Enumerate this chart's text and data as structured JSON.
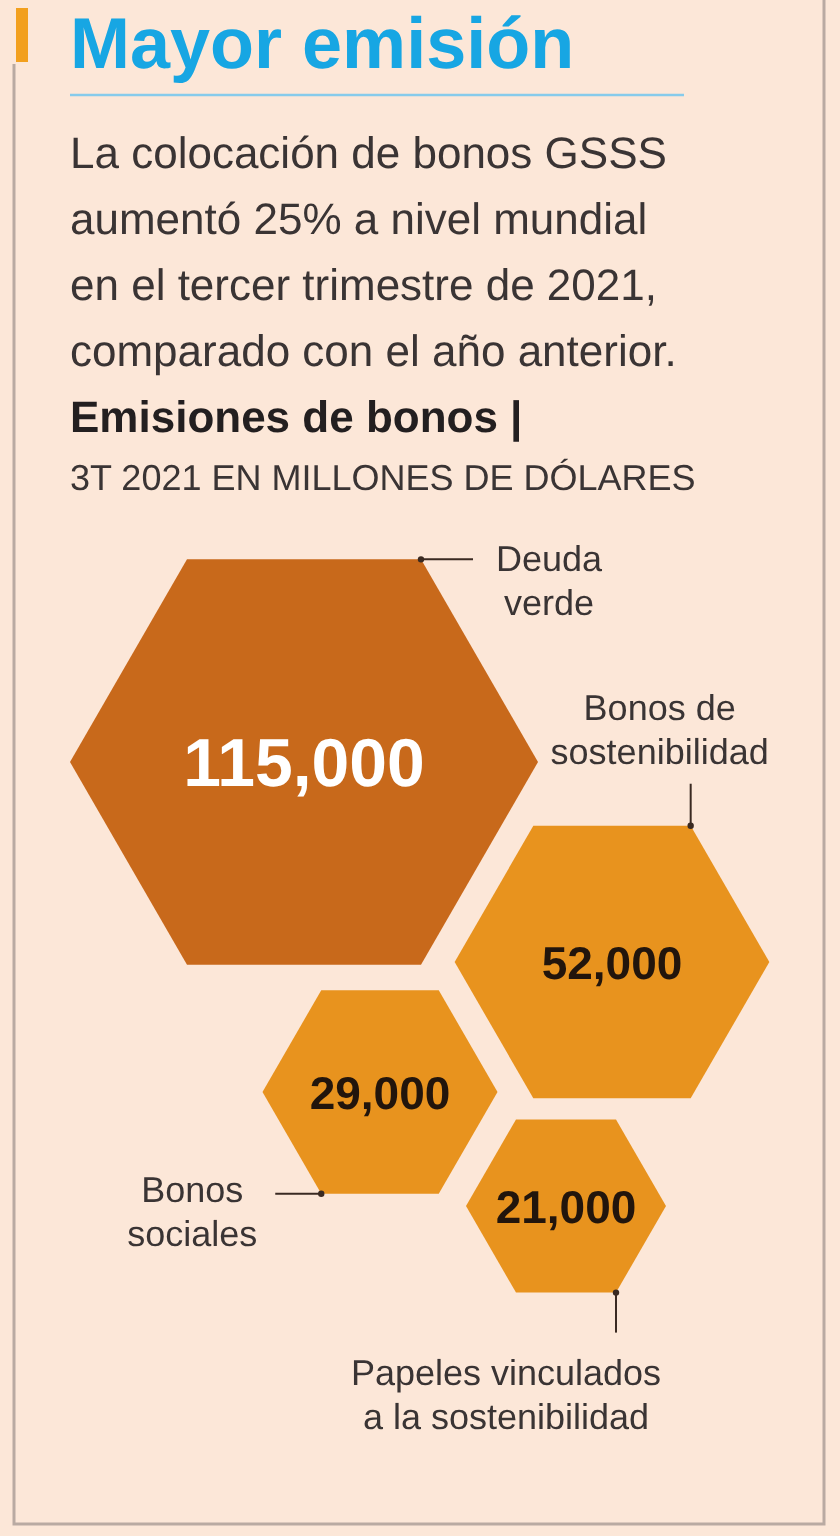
{
  "chart_data": {
    "type": "other",
    "title": "Mayor emisión",
    "subtitle": "La colocación de bonos GSSS aumentó 25% a nivel mundial en el tercer trimestre de 2021, comparado con el año anterior.",
    "annotations": [
      "Emisiones de bonos |",
      "3T 2021 EN MILLONES DE DÓLARES"
    ],
    "categories": [
      "Deuda verde",
      "Bonos de sostenibilidad",
      "Bonos sociales",
      "Papeles vinculados a la sostenibilidad"
    ],
    "values": [
      115000,
      52000,
      29000,
      21000
    ],
    "colors": [
      "#c8691b",
      "#e8931e",
      "#e8931e",
      "#e8931e"
    ],
    "value_labels": [
      "115,000",
      "52,000",
      "29,000",
      "21,000"
    ]
  }
}
